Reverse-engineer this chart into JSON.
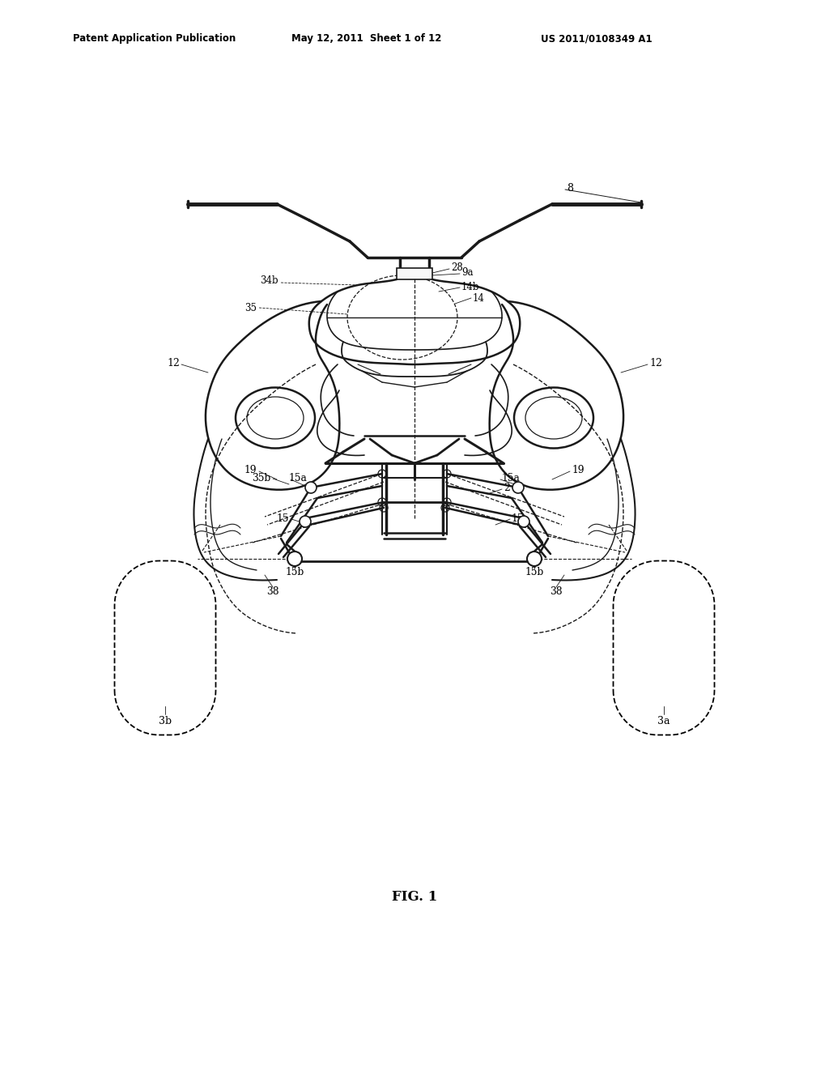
{
  "header_left": "Patent Application Publication",
  "header_center": "May 12, 2011  Sheet 1 of 12",
  "header_right": "US 2011/0108349 A1",
  "figure_label": "FIG. 1",
  "bg": "#ffffff",
  "lc": "#1a1a1a"
}
